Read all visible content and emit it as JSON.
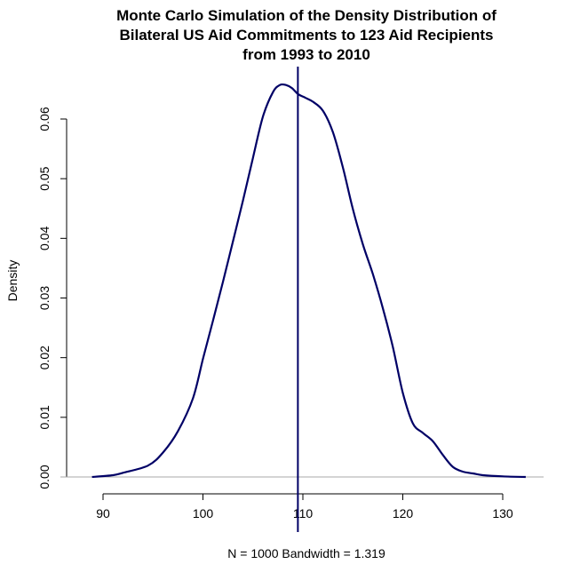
{
  "chart_data": {
    "type": "line",
    "title_lines": [
      "Monte Carlo Simulation of the Density Distribution of",
      "Bilateral US Aid Commitments to 123 Aid Recipients",
      "from 1993 to 2010"
    ],
    "xlabel": "N = 1000   Bandwidth = 1.319",
    "ylabel": "Density",
    "xlim": [
      88,
      133
    ],
    "ylim": [
      0,
      0.066
    ],
    "xticks": [
      "90",
      "100",
      "110",
      "120",
      "130"
    ],
    "yticks": [
      "0.00",
      "0.01",
      "0.02",
      "0.03",
      "0.04",
      "0.05",
      "0.06"
    ],
    "series": [
      {
        "color": "#000066",
        "x": [
          88.9,
          91,
          92,
          94.5,
          96,
          97.5,
          99,
          100,
          101,
          102,
          103,
          104,
          105,
          106,
          107,
          107.7,
          108.3,
          108.9,
          109.5,
          110.2,
          111,
          112,
          113,
          114,
          115,
          116,
          117,
          118,
          119,
          120,
          121,
          122,
          123,
          124,
          125,
          126,
          127,
          128,
          130,
          132.3
        ],
        "y": [
          0.0,
          0.0003,
          0.0007,
          0.0019,
          0.0041,
          0.0077,
          0.0132,
          0.0198,
          0.0262,
          0.0327,
          0.0395,
          0.0463,
          0.0535,
          0.0604,
          0.0645,
          0.0657,
          0.0657,
          0.0652,
          0.0642,
          0.0636,
          0.0629,
          0.0614,
          0.0578,
          0.0519,
          0.0449,
          0.039,
          0.034,
          0.0283,
          0.0218,
          0.0141,
          0.009,
          0.0074,
          0.006,
          0.0037,
          0.0017,
          0.0009,
          0.0006,
          0.0003,
          0.0001,
          0.0
        ]
      }
    ],
    "vline": {
      "x": 109.5,
      "color": "#000066"
    },
    "baseline": {
      "y": 0,
      "color": "#aaaaaa"
    }
  }
}
